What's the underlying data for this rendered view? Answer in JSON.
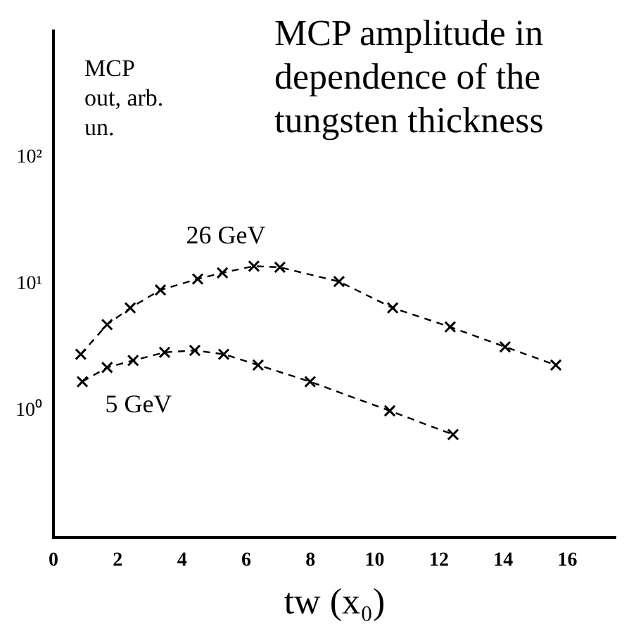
{
  "chart_data": {
    "type": "line",
    "title": "MCP amplitude in dependence of the tungsten thickness",
    "ylabel": "MCP out, arb. un.",
    "xlabel": "tw (x₀)",
    "log": "y",
    "xlim": [
      0,
      17.5
    ],
    "xticks": [
      0,
      2,
      4,
      6,
      8,
      10,
      12,
      14,
      16
    ],
    "ylim": [
      0.1,
      1000
    ],
    "yticks": [
      {
        "value": 1,
        "label": "10⁰"
      },
      {
        "value": 10,
        "label": "10¹"
      },
      {
        "value": 100,
        "label": "10²"
      }
    ],
    "grid": false,
    "legend": false,
    "marker": "cross",
    "line_style": "dashed",
    "series": [
      {
        "name": "26 GeV",
        "color": "#000000",
        "x": [
          0.85,
          1.67,
          2.39,
          3.33,
          4.49,
          5.26,
          6.24,
          7.05,
          8.89,
          10.56,
          12.35,
          14.06,
          15.64
        ],
        "values": [
          2.8,
          4.8,
          6.5,
          9.0,
          11,
          12.3,
          13.9,
          13.6,
          10.5,
          6.5,
          4.6,
          3.2,
          2.3
        ]
      },
      {
        "name": "5 GeV",
        "color": "#000000",
        "x": [
          0.9,
          1.67,
          2.48,
          3.46,
          4.4,
          5.3,
          6.37,
          7.99,
          10.47,
          12.44
        ],
        "values": [
          1.7,
          2.2,
          2.5,
          2.9,
          3.0,
          2.8,
          2.3,
          1.7,
          1.0,
          0.65
        ]
      }
    ]
  }
}
